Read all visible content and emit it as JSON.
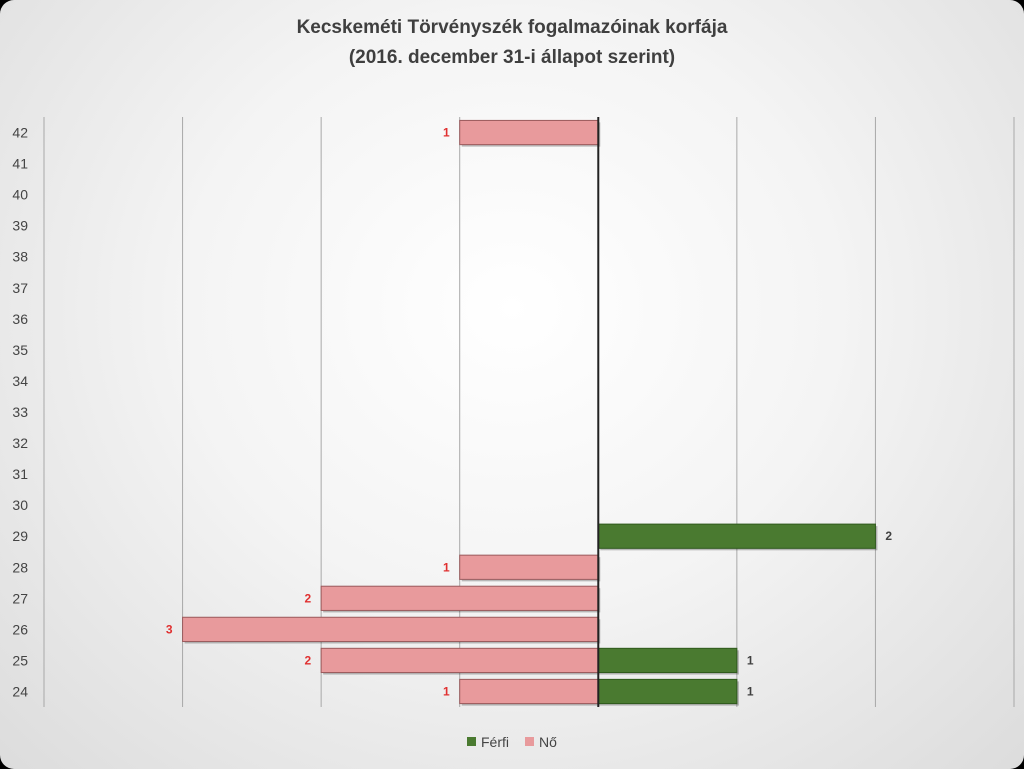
{
  "chart_data": {
    "type": "bar",
    "orientation": "horizontal",
    "title": "Kecskeméti Törvényszék fogalmazóinak korfája",
    "subtitle": "(2016. december 31-i állapot szerint)",
    "categories": [
      "24",
      "25",
      "26",
      "27",
      "28",
      "29",
      "30",
      "31",
      "32",
      "33",
      "34",
      "35",
      "36",
      "37",
      "38",
      "39",
      "40",
      "41",
      "42"
    ],
    "series": [
      {
        "name": "Férfi",
        "color": "#4a7a30",
        "values": [
          1,
          1,
          0,
          0,
          0,
          2,
          0,
          0,
          0,
          0,
          0,
          0,
          0,
          0,
          0,
          0,
          0,
          0,
          0
        ]
      },
      {
        "name": "Nő",
        "color": "#e89a9c",
        "values": [
          1,
          2,
          3,
          2,
          1,
          0,
          0,
          0,
          0,
          0,
          0,
          0,
          0,
          0,
          0,
          0,
          0,
          0,
          1
        ]
      }
    ],
    "xlim": [
      -4,
      3
    ],
    "grid": true,
    "legend_position": "bottom"
  }
}
